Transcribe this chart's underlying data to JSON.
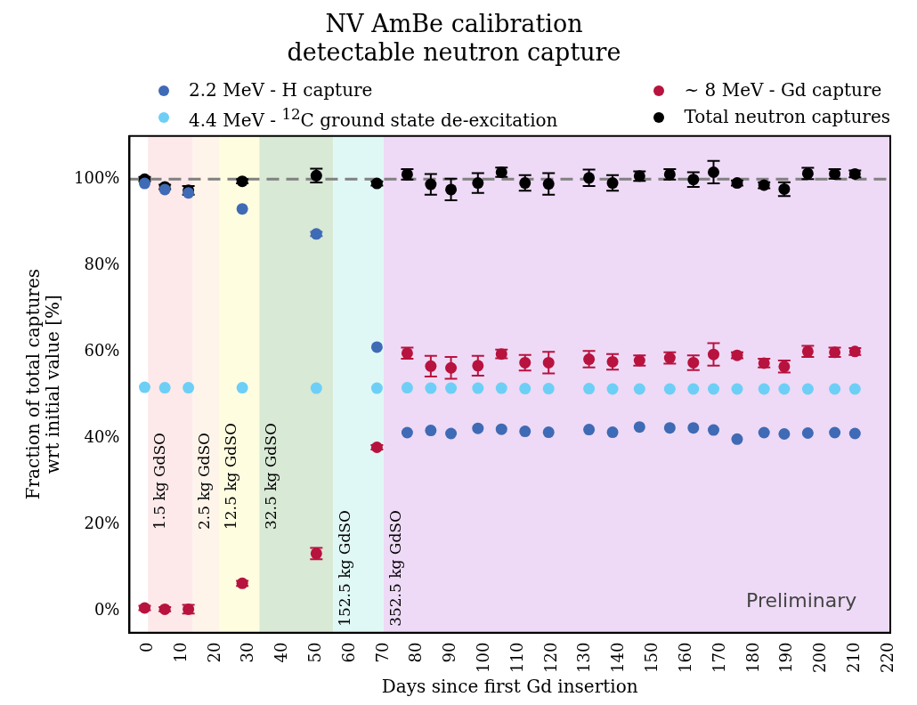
{
  "chart_data": {
    "type": "scatter",
    "title": "NV AmBe calibration\ndetectable neutron capture",
    "xlabel": "Days since first Gd insertion",
    "ylabel": "Fraction of total captures\nwrt initial value [%]",
    "xlim": [
      -5.5,
      220.5
    ],
    "xticks": [
      0,
      10,
      20,
      30,
      40,
      50,
      60,
      70,
      80,
      90,
      100,
      110,
      120,
      130,
      140,
      150,
      160,
      170,
      180,
      190,
      200,
      210,
      220
    ],
    "ylim": [
      -5,
      110
    ],
    "yticks": [
      {
        "value": 0,
        "label": "0%"
      },
      {
        "value": 20,
        "label": "20%"
      },
      {
        "value": 40,
        "label": "40%"
      },
      {
        "value": 60,
        "label": "60%"
      },
      {
        "value": 80,
        "label": "80%"
      },
      {
        "value": 100,
        "label": "100%"
      }
    ],
    "marker": "circle",
    "legend": "top",
    "grid": false,
    "series": [
      {
        "name": "2.2 MeV -  H capture",
        "color": "#3f6ab5",
        "x": [
          -1,
          5,
          12,
          28,
          50,
          68,
          77,
          84,
          90,
          98,
          105,
          112,
          119,
          131,
          138,
          146,
          155,
          162,
          168,
          175,
          183,
          189,
          196,
          204,
          210
        ],
        "values": [
          99.0,
          97.6,
          96.8,
          93.1,
          87.3,
          61.1,
          41.3,
          41.8,
          41.1,
          42.3,
          42.1,
          41.6,
          41.4,
          42.0,
          41.4,
          42.6,
          42.4,
          42.4,
          41.9,
          39.8,
          41.3,
          41.0,
          41.2,
          41.3,
          41.1
        ],
        "errors": [
          null,
          null,
          null,
          null,
          0.5,
          null,
          null,
          null,
          null,
          null,
          null,
          null,
          null,
          null,
          null,
          null,
          null,
          null,
          null,
          null,
          null,
          null,
          null,
          null,
          null
        ]
      },
      {
        "name": "4.4 MeV - $^{12}$C ground state de-excitation",
        "color": "#6dcff6",
        "x": [
          -1,
          5,
          12,
          28,
          50,
          68,
          77,
          84,
          90,
          98,
          105,
          112,
          119,
          131,
          138,
          146,
          155,
          162,
          168,
          175,
          183,
          189,
          196,
          204,
          210
        ],
        "values": [
          51.8,
          51.7,
          51.7,
          51.7,
          51.6,
          51.6,
          51.7,
          51.6,
          51.6,
          51.6,
          51.6,
          51.5,
          51.5,
          51.5,
          51.4,
          51.4,
          51.4,
          51.4,
          51.4,
          51.4,
          51.4,
          51.4,
          51.4,
          51.4,
          51.4
        ]
      },
      {
        "name": "~ 8 MeV - Gd capture",
        "color": "#b8123e",
        "x": [
          -1,
          5,
          12,
          28,
          50,
          68,
          77,
          84,
          90,
          98,
          105,
          112,
          119,
          131,
          138,
          146,
          155,
          162,
          168,
          175,
          183,
          189,
          196,
          204,
          210
        ],
        "values": [
          0.7,
          0.4,
          0.4,
          6.4,
          13.3,
          37.9,
          59.7,
          56.7,
          56.3,
          56.8,
          59.5,
          57.5,
          57.5,
          58.3,
          57.7,
          58.0,
          58.6,
          57.5,
          59.4,
          59.2,
          57.4,
          56.6,
          60.1,
          59.9,
          60.1
        ],
        "errors": [
          0.5,
          0.5,
          1.0,
          0.6,
          1.3,
          0.5,
          1.3,
          2.4,
          2.5,
          2.3,
          1.0,
          1.8,
          2.5,
          1.9,
          1.8,
          1.2,
          1.3,
          1.7,
          2.6,
          0.7,
          1.0,
          1.4,
          1.3,
          1.1,
          0.8
        ]
      },
      {
        "name": "Total neutron captures",
        "color": "#000000",
        "x": [
          -1,
          5,
          12,
          28,
          50,
          68,
          77,
          84,
          90,
          98,
          105,
          112,
          119,
          131,
          138,
          146,
          155,
          162,
          168,
          175,
          183,
          189,
          196,
          204,
          210
        ],
        "values": [
          100.0,
          98.2,
          97.4,
          99.5,
          100.8,
          99.0,
          101.1,
          98.8,
          97.6,
          99.1,
          101.6,
          99.1,
          98.9,
          100.3,
          99.1,
          100.7,
          101.1,
          99.9,
          101.6,
          99.1,
          98.6,
          97.7,
          101.3,
          101.2,
          101.2
        ],
        "errors": [
          0.5,
          0.5,
          1.0,
          0.5,
          1.6,
          0.5,
          1.2,
          2.4,
          2.5,
          2.3,
          1.1,
          1.8,
          2.5,
          1.9,
          1.8,
          1.1,
          1.2,
          1.7,
          2.6,
          0.6,
          0.7,
          1.6,
          1.3,
          1.1,
          0.8
        ]
      }
    ],
    "ref_lines": [
      {
        "axis": "y",
        "value": 100,
        "color": "#808080",
        "line_style": "dashed"
      }
    ],
    "bands": [
      {
        "axis": "x",
        "from": 0,
        "to": 13.3,
        "label": "1.5 kg GdSO",
        "color": "#fde9ea"
      },
      {
        "axis": "x",
        "from": 13.3,
        "to": 21.2,
        "label": "2.5 kg GdSO",
        "color": "#fef4ea"
      },
      {
        "axis": "x",
        "from": 21.2,
        "to": 33.1,
        "label": "12.5 kg GdSO",
        "color": "#fefde0"
      },
      {
        "axis": "x",
        "from": 33.1,
        "to": 55,
        "label": "32.5 kg GdSO",
        "color": "#d8e9d6"
      },
      {
        "axis": "x",
        "from": 55,
        "to": 70,
        "label": "152.5 kg GdSO",
        "color": "#e0f8f5"
      },
      {
        "axis": "x",
        "from": 70,
        "to": 220.5,
        "label": "352.5 kg GdSO",
        "color": "#eedaf6"
      }
    ],
    "annotations": [
      "Preliminary"
    ]
  }
}
